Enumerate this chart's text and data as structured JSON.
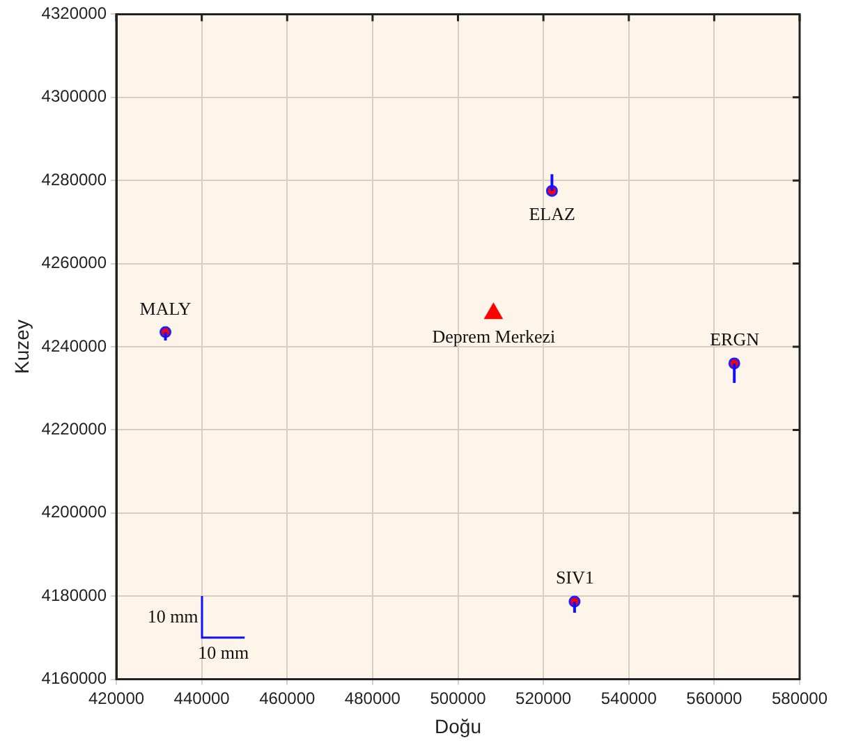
{
  "chart_data": {
    "type": "scatter",
    "xlabel": "Doğu",
    "ylabel": "Kuzey",
    "xlim": [
      420000,
      580000
    ],
    "xticks": [
      420000,
      440000,
      460000,
      480000,
      500000,
      520000,
      540000,
      560000,
      580000
    ],
    "ylim": [
      4160000,
      4320000
    ],
    "yticks": [
      4160000,
      4180000,
      4200000,
      4220000,
      4240000,
      4260000,
      4280000,
      4300000,
      4320000
    ],
    "grid": true,
    "legend": false,
    "series": [
      {
        "type": "scatter",
        "marker": "circle",
        "color": "#ff0000",
        "x": [
          431500,
          522000,
          564700,
          527300
        ],
        "values": [
          4243500,
          4277500,
          4236000,
          4178700
        ],
        "errors": [
          [
            4241500,
            4243500
          ],
          [
            4277500,
            4281500
          ],
          [
            4231300,
            4236000
          ],
          [
            4176000,
            4178700
          ]
        ]
      },
      {
        "type": "scatter",
        "marker": "triangle",
        "color": "#ff0000",
        "x": [
          508300
        ],
        "values": [
          4248000
        ]
      }
    ],
    "annotations": [
      {
        "text": "MALY",
        "x": 431500,
        "y": 4243500
      },
      {
        "text": "ELAZ",
        "x": 522000,
        "y": 4277500
      },
      {
        "text": "Deprem Merkezi",
        "x": 508300,
        "y": 4248000
      },
      {
        "text": "ERGN",
        "x": 564700,
        "y": 4236000
      },
      {
        "text": "SIV1",
        "x": 527300,
        "y": 4178700
      },
      "10 mm",
      "10 mm"
    ]
  }
}
